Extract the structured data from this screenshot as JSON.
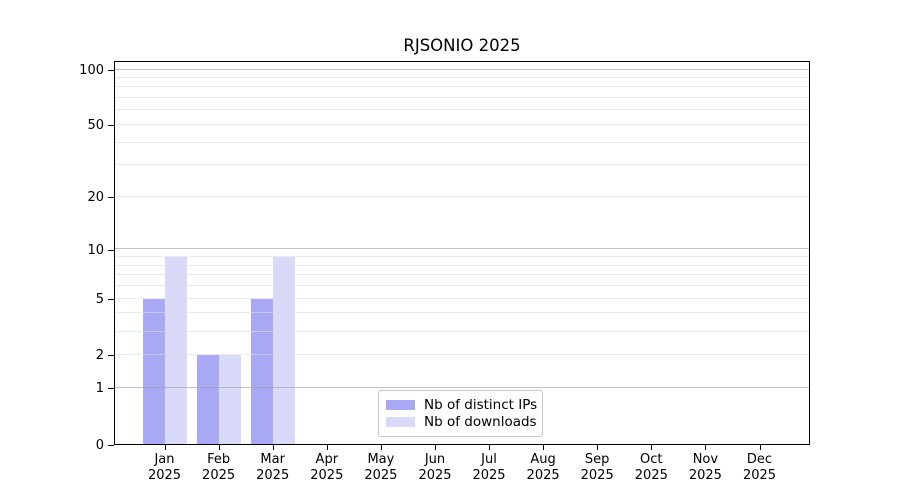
{
  "title": "RJSONIO 2025",
  "colors": {
    "background": "#ffffff",
    "frame": "#000000",
    "text": "#000000",
    "bar_distinct_ips": "#a8a8f4",
    "bar_downloads": "#d9d9fa",
    "grid_minor": "#ededed",
    "grid_major": "#c6c6c6",
    "legend_border": "#c8c8c8"
  },
  "chart_data": {
    "type": "bar",
    "title": "RJSONIO 2025",
    "categories": [
      "Jan",
      "Feb",
      "Mar",
      "Apr",
      "May",
      "Jun",
      "Jul",
      "Aug",
      "Sep",
      "Oct",
      "Nov",
      "Dec"
    ],
    "x_year_label": "2025",
    "series": [
      {
        "name": "Nb of distinct IPs",
        "color": "#a8a8f4",
        "values": [
          5,
          2,
          5,
          0,
          0,
          0,
          0,
          0,
          0,
          0,
          0,
          0
        ]
      },
      {
        "name": "Nb of downloads",
        "color": "#d9d9fa",
        "values": [
          9,
          2,
          9,
          0,
          0,
          0,
          0,
          0,
          0,
          0,
          0,
          0
        ]
      }
    ],
    "xlabel": "",
    "ylabel": "",
    "y_axis": {
      "scale": "log10(1+y)",
      "ticks": [
        0,
        1,
        2,
        5,
        10,
        20,
        50,
        100
      ],
      "ylim": [
        0,
        112
      ],
      "top_labeled_value": 100,
      "minor_gridlines": [
        2,
        3,
        4,
        5,
        6,
        7,
        8,
        9,
        20,
        30,
        40,
        50,
        60,
        70,
        80,
        90
      ],
      "major_gridlines": [
        1,
        10,
        100
      ]
    },
    "grid": true,
    "legend_position": "bottom-center"
  }
}
